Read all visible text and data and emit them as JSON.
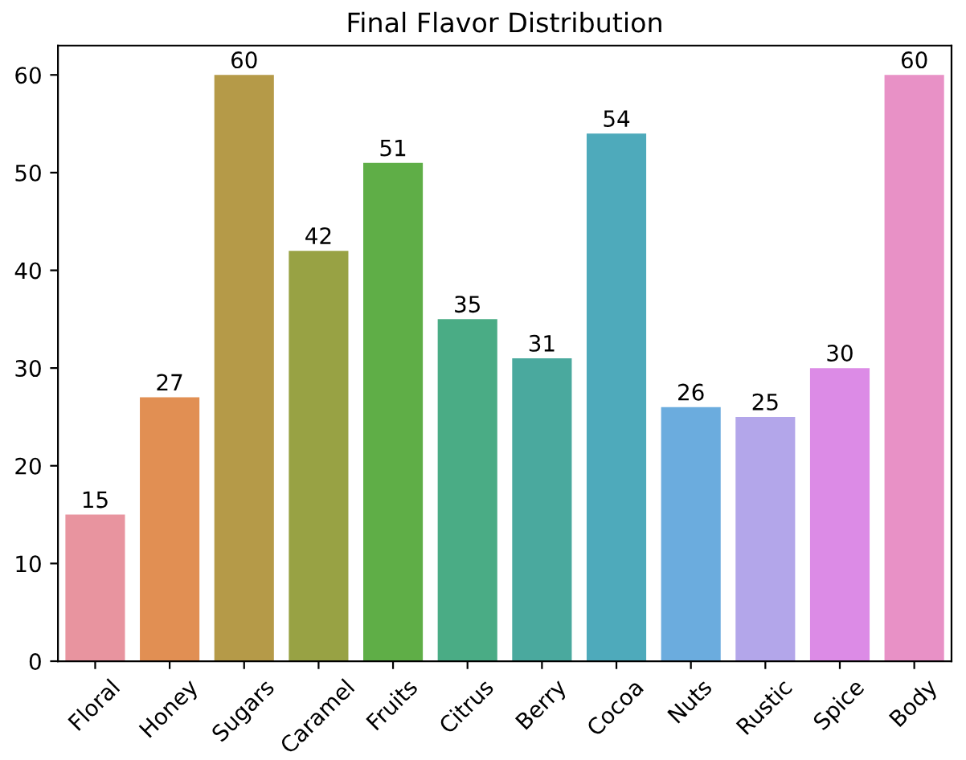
{
  "chart_data": {
    "type": "bar",
    "title": "Final Flavor Distribution",
    "categories": [
      "Floral",
      "Honey",
      "Sugars",
      "Caramel",
      "Fruits",
      "Citrus",
      "Berry",
      "Cocoa",
      "Nuts",
      "Rustic",
      "Spice",
      "Body"
    ],
    "values": [
      15,
      27,
      60,
      42,
      51,
      35,
      31,
      54,
      26,
      25,
      30,
      60
    ],
    "colors": [
      "#e8949f",
      "#e18f53",
      "#b59a48",
      "#98a244",
      "#5fae47",
      "#4aac85",
      "#4aa99e",
      "#4eaabb",
      "#6bacde",
      "#b3a6ea",
      "#dc8be6",
      "#e891c6"
    ],
    "ylim": [
      0,
      63
    ],
    "yticks": [
      0,
      10,
      20,
      30,
      40,
      50,
      60
    ],
    "data_labels": true,
    "grid": false,
    "legend": false
  }
}
